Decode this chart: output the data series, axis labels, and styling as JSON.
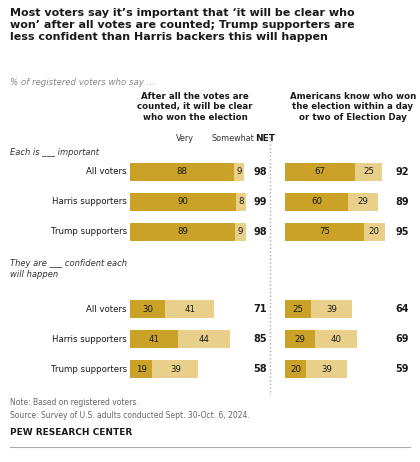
{
  "title": "Most voters say it’s important that ‘it will be clear who\nwon’ after all votes are counted; Trump supporters are\nless confident than Harris backers this will happen",
  "subtitle": "% of registered voters who say …",
  "col1_header": "After all the votes are\ncounted, it will be clear\nwho won the election",
  "col2_header": "Americans know who won\nthe election within a day\nor two of Election Day",
  "section1_label": "Each is ___ important",
  "section2_label": "They are ___ confident each\nwill happen",
  "rows": [
    "All voters",
    "Harris supporters",
    "Trump supporters"
  ],
  "col1_very": [
    88,
    90,
    89,
    30,
    41,
    19
  ],
  "col1_somewhat": [
    9,
    8,
    9,
    41,
    44,
    39
  ],
  "col1_net": [
    98,
    99,
    98,
    71,
    85,
    58
  ],
  "col2_very": [
    67,
    60,
    75,
    25,
    29,
    20
  ],
  "col2_somewhat": [
    25,
    29,
    20,
    39,
    40,
    39
  ],
  "col2_net": [
    92,
    89,
    95,
    64,
    69,
    59
  ],
  "color_very": "#C9A227",
  "color_somewhat": "#E8D08A",
  "note": "Note: Based on registered voters.",
  "source": "Source: Survey of U.S. adults conducted Sept. 30-Oct. 6, 2024.",
  "org": "PEW RESEARCH CENTER",
  "bg_color": "#FFFFFF"
}
